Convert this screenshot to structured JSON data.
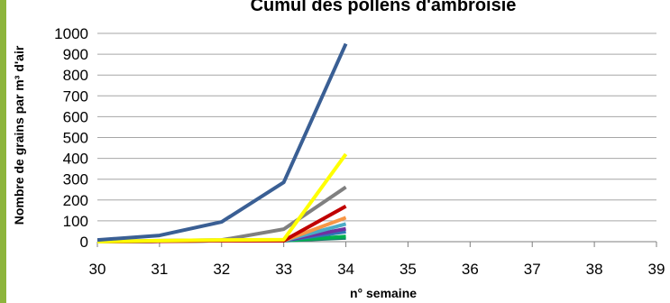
{
  "chart_data": {
    "type": "line",
    "title": "Cumul des pollens d'ambroisie",
    "xlabel": "n° semaine",
    "ylabel": "Nombre de grains par m³ d'air",
    "x": [
      30,
      31,
      32,
      33,
      34
    ],
    "xlim": [
      30,
      39
    ],
    "xticks": [
      30,
      31,
      32,
      33,
      34,
      35,
      36,
      37,
      38,
      39
    ],
    "ylim": [
      0,
      1000
    ],
    "yticks": [
      0,
      100,
      200,
      300,
      400,
      500,
      600,
      700,
      800,
      900,
      1000
    ],
    "grid": "horizontal",
    "series": [
      {
        "color": "#3A5F94",
        "values": [
          8,
          30,
          95,
          285,
          950
        ]
      },
      {
        "color": "#FFFF00",
        "values": [
          0,
          5,
          8,
          10,
          420
        ]
      },
      {
        "color": "#808080",
        "values": [
          0,
          5,
          8,
          60,
          262
        ]
      },
      {
        "color": "#C00000",
        "values": [
          0,
          2,
          5,
          5,
          170
        ]
      },
      {
        "color": "#F79646",
        "values": [
          0,
          2,
          5,
          5,
          115
        ]
      },
      {
        "color": "#4BACC6",
        "values": [
          0,
          2,
          5,
          5,
          85
        ]
      },
      {
        "color": "#7030A0",
        "values": [
          0,
          2,
          5,
          5,
          62
        ]
      },
      {
        "color": "#2E75B6",
        "values": [
          0,
          2,
          5,
          5,
          48
        ]
      },
      {
        "color": "#00B050",
        "values": [
          0,
          2,
          5,
          5,
          25
        ]
      },
      {
        "color": "#17806D",
        "values": [
          0,
          2,
          5,
          5,
          18
        ]
      }
    ],
    "left_bar_color": "#8DB53C"
  }
}
